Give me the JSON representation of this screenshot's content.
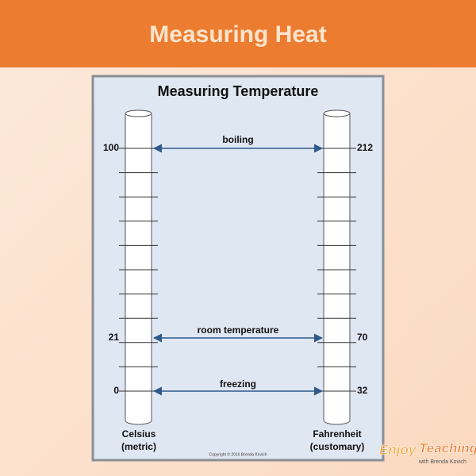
{
  "header": {
    "title": "Measuring Heat"
  },
  "poster": {
    "title": "Measuring Temperature",
    "scales": [
      {
        "name": "Celsius",
        "unit": "(metric)"
      },
      {
        "name": "Fahrenheit",
        "unit": "(customary)"
      }
    ],
    "points": [
      {
        "label": "boiling",
        "celsius": 100,
        "fahrenheit": 212
      },
      {
        "label": "room temperature",
        "celsius": 21,
        "fahrenheit": 70
      },
      {
        "label": "freezing",
        "celsius": 0,
        "fahrenheit": 32
      }
    ],
    "copyright": "Copyright © 2016 Brenda Kovich"
  },
  "logo": {
    "first": "Enjoy",
    "second": "Teaching",
    "byline": "with Brenda Kovich"
  }
}
